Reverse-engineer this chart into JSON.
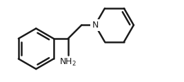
{
  "bg_color": "#ffffff",
  "line_color": "#1a1a1a",
  "line_width": 1.8,
  "figure_width": 2.67,
  "figure_height": 1.19,
  "dpi": 100,
  "nh2_label": "NH$_2$",
  "n_label": "N",
  "font_size": 9,
  "n_font_size": 9
}
